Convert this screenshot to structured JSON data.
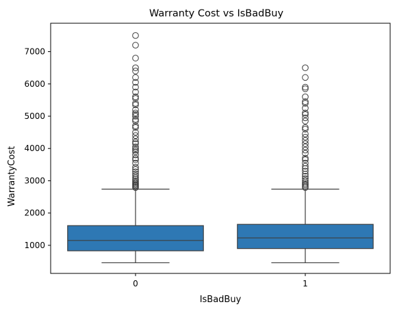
{
  "chart_data": {
    "type": "box",
    "title": "Warranty Cost vs IsBadBuy",
    "xlabel": "IsBadBuy",
    "ylabel": "WarrantyCost",
    "categories": [
      "0",
      "1"
    ],
    "ylim": [
      130,
      7880
    ],
    "yticks": [
      1000,
      2000,
      3000,
      4000,
      5000,
      6000,
      7000
    ],
    "grid": false,
    "box_color": "#2e78b4",
    "line_color": "#3d3d3d",
    "boxes": [
      {
        "category": "0",
        "whisker_low": 460,
        "q1": 830,
        "median": 1150,
        "q3": 1610,
        "whisker_high": 2740,
        "outliers": [
          2790,
          2820,
          2850,
          2880,
          2910,
          2950,
          2990,
          3040,
          3090,
          3150,
          3210,
          3280,
          3350,
          3420,
          3550,
          3650,
          3700,
          3800,
          3900,
          3950,
          4000,
          4050,
          4150,
          4200,
          4300,
          4400,
          4500,
          4650,
          4700,
          4850,
          4900,
          5000,
          5050,
          5100,
          5200,
          5350,
          5400,
          5550,
          5600,
          5750,
          5900,
          6050,
          6200,
          6400,
          6500,
          6800,
          7200,
          7500
        ]
      },
      {
        "category": "1",
        "whisker_low": 460,
        "q1": 900,
        "median": 1230,
        "q3": 1650,
        "whisker_high": 2740,
        "outliers": [
          2790,
          2830,
          2870,
          2910,
          2960,
          3010,
          3070,
          3140,
          3210,
          3300,
          3380,
          3450,
          3550,
          3650,
          3700,
          3850,
          3950,
          4050,
          4150,
          4250,
          4350,
          4450,
          4600,
          4650,
          4850,
          4950,
          5050,
          5100,
          5250,
          5400,
          5450,
          5600,
          5850,
          5900,
          6200,
          6500
        ]
      }
    ]
  }
}
